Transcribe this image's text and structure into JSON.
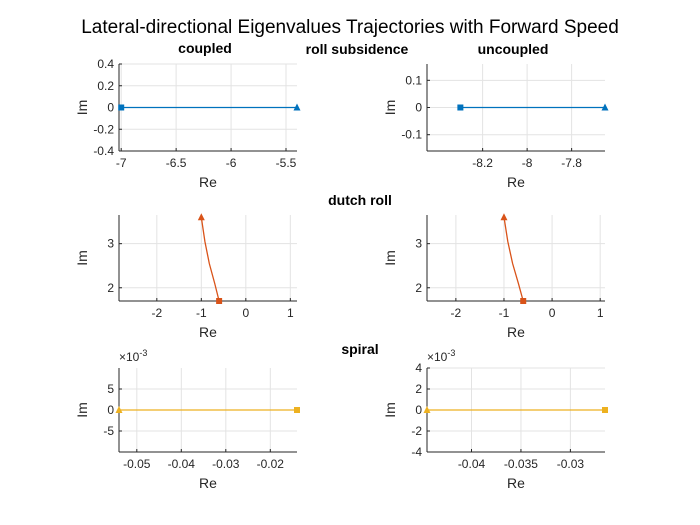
{
  "figure": {
    "title": "Lateral-directional Eigenvalues Trajectories with Forward Speed",
    "row_titles": [
      "roll subsidence",
      "dutch roll",
      "spiral"
    ],
    "column_titles": [
      "coupled",
      "uncoupled"
    ]
  },
  "chart_data": [
    {
      "type": "line",
      "name": "roll subsidence - coupled",
      "xlabel": "Re",
      "ylabel": "Im",
      "xlim": [
        -7.02,
        -5.4
      ],
      "ylim": [
        -0.4,
        0.4
      ],
      "xticks": [
        -7,
        -6.5,
        -6,
        -5.5
      ],
      "xtick_labels": [
        "-7",
        "-6.5",
        "-6",
        "-5.5"
      ],
      "yticks": [
        -0.4,
        -0.2,
        0,
        0.2,
        0.4
      ],
      "ytick_labels": [
        "-0.4",
        "-0.2",
        "0",
        "0.2",
        "0.4"
      ],
      "exponent": "",
      "grid": true,
      "color": "#0072BD",
      "x": [
        -7.0,
        -5.4
      ],
      "y": [
        0,
        0
      ],
      "start_marker": "square",
      "end_marker": "triangle"
    },
    {
      "type": "line",
      "name": "roll subsidence - uncoupled",
      "xlabel": "Re",
      "ylabel": "Im",
      "xlim": [
        -8.45,
        -7.65
      ],
      "ylim": [
        -0.16,
        0.16
      ],
      "xticks": [
        -8.2,
        -8,
        -7.8
      ],
      "xtick_labels": [
        "-8.2",
        "-8",
        "-7.8"
      ],
      "yticks": [
        -0.1,
        0,
        0.1
      ],
      "ytick_labels": [
        "-0.1",
        "0",
        "0.1"
      ],
      "exponent": "",
      "grid": true,
      "color": "#0072BD",
      "x": [
        -8.3,
        -7.65
      ],
      "y": [
        0,
        0
      ],
      "start_marker": "square",
      "end_marker": "triangle"
    },
    {
      "type": "line",
      "name": "dutch roll - coupled",
      "xlabel": "Re",
      "ylabel": "Im",
      "xlim": [
        -2.85,
        1.15
      ],
      "ylim": [
        1.7,
        3.65
      ],
      "xticks": [
        -2,
        -1,
        0,
        1
      ],
      "xtick_labels": [
        "-2",
        "-1",
        "0",
        "1"
      ],
      "yticks": [
        2,
        3
      ],
      "ytick_labels": [
        "2",
        "3"
      ],
      "exponent": "",
      "grid": true,
      "color": "#D95319",
      "x": [
        -0.6,
        -0.7,
        -0.82,
        -0.92,
        -1.0
      ],
      "y": [
        1.7,
        2.1,
        2.55,
        3.05,
        3.6
      ],
      "start_marker": "square",
      "end_marker": "triangle"
    },
    {
      "type": "line",
      "name": "dutch roll - uncoupled",
      "xlabel": "Re",
      "ylabel": "Im",
      "xlim": [
        -2.6,
        1.1
      ],
      "ylim": [
        1.7,
        3.65
      ],
      "xticks": [
        -2,
        -1,
        0,
        1
      ],
      "xtick_labels": [
        "-2",
        "-1",
        "0",
        "1"
      ],
      "yticks": [
        2,
        3
      ],
      "ytick_labels": [
        "2",
        "3"
      ],
      "exponent": "",
      "grid": true,
      "color": "#D95319",
      "x": [
        -0.6,
        -0.7,
        -0.82,
        -0.92,
        -1.0
      ],
      "y": [
        1.7,
        2.1,
        2.55,
        3.05,
        3.6
      ],
      "start_marker": "square",
      "end_marker": "triangle"
    },
    {
      "type": "line",
      "name": "spiral - coupled",
      "xlabel": "Re",
      "ylabel": "Im",
      "xlim": [
        -0.054,
        -0.014
      ],
      "ylim": [
        -0.01,
        0.01
      ],
      "xticks": [
        -0.05,
        -0.04,
        -0.03,
        -0.02
      ],
      "xtick_labels": [
        "-0.05",
        "-0.04",
        "-0.03",
        "-0.02"
      ],
      "yticks": [
        -0.005,
        0,
        0.005
      ],
      "ytick_labels": [
        "-5",
        "0",
        "5"
      ],
      "exponent": "-3",
      "grid": true,
      "color": "#EDB120",
      "x": [
        -0.014,
        -0.054
      ],
      "y": [
        0,
        0
      ],
      "start_marker": "square",
      "end_marker": "triangle"
    },
    {
      "type": "line",
      "name": "spiral - uncoupled",
      "xlabel": "Re",
      "ylabel": "Im",
      "xlim": [
        -0.0445,
        -0.0265
      ],
      "ylim": [
        -0.004,
        0.004
      ],
      "xticks": [
        -0.04,
        -0.035,
        -0.03
      ],
      "xtick_labels": [
        "-0.04",
        "-0.035",
        "-0.03"
      ],
      "yticks": [
        -0.004,
        -0.002,
        0,
        0.002,
        0.004
      ],
      "ytick_labels": [
        "-4",
        "-2",
        "0",
        "2",
        "4"
      ],
      "exponent": "-3",
      "grid": true,
      "color": "#EDB120",
      "x": [
        -0.0265,
        -0.0445
      ],
      "y": [
        0,
        0
      ],
      "start_marker": "square",
      "end_marker": "triangle"
    }
  ]
}
